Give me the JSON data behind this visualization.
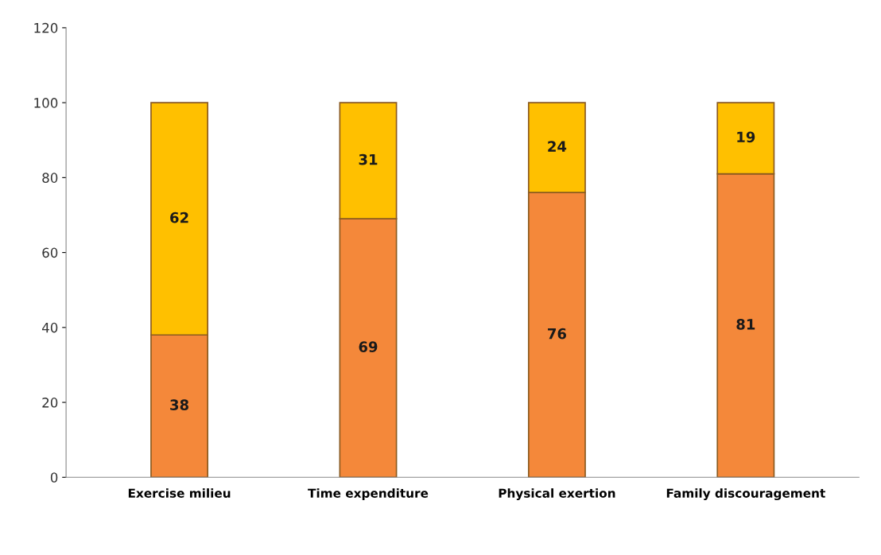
{
  "chart_data": {
    "type": "bar",
    "stacked": true,
    "categories": [
      "Exercise milieu",
      "Time expenditure",
      "Physical exertion",
      "Family discouragement"
    ],
    "series": [
      {
        "color": "#f4883a",
        "values": [
          38,
          69,
          76,
          81
        ]
      },
      {
        "color": "#ffc000",
        "values": [
          62,
          31,
          24,
          19
        ]
      }
    ],
    "ylim": [
      0,
      120
    ],
    "yticks": [
      0,
      20,
      40,
      60,
      80,
      100,
      120
    ],
    "grid": false,
    "legend": false,
    "data_labels": true
  }
}
